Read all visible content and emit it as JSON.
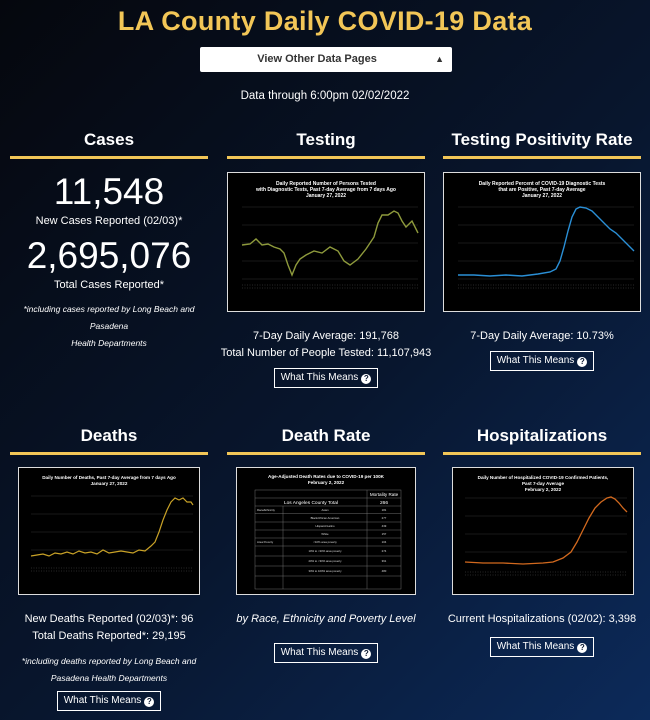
{
  "page_title": "LA County Daily COVID-19 Data",
  "select": {
    "value": "View Other Data Pages"
  },
  "data_through": "Data through 6:00pm 02/02/2022",
  "what_label": "What This Means",
  "cases": {
    "title": "Cases",
    "new_cases": "11,548",
    "new_cases_label": "New Cases Reported (02/03)*",
    "total_cases": "2,695,076",
    "total_cases_label": "Total Cases Reported*",
    "note_line1": "*including cases reported by Long Beach and Pasadena",
    "note_line2": "Health Departments"
  },
  "testing": {
    "title": "Testing",
    "chart_title1": "Daily Reported Number of Persons Tested",
    "chart_title2": "with Diagnostic Tests, Past 7-day Average from 7 days Ago",
    "chart_title3": "January 27, 2022",
    "avg": "7-Day Daily Average: 191,768",
    "total": "Total Number of People Tested: 11,107,943",
    "line_color": "#8e9a3c"
  },
  "positivity": {
    "title": "Testing Positivity Rate",
    "chart_title1": "Daily Reported Percent of COVID-19 Diagnostic Tests",
    "chart_title2": "that are Positive, Past 7-day Average",
    "chart_title3": "January 27, 2022",
    "avg": "7-Day Daily Average: 10.73%",
    "line_color": "#2a8fd6"
  },
  "deaths": {
    "title": "Deaths",
    "chart_title1": "Daily Number of Deaths, Past 7-day Average from 7 days Ago",
    "chart_title2": "January 27, 2022",
    "new": "New Deaths Reported (02/03)*: 96",
    "total": "Total Deaths Reported*: 29,195",
    "note_line1": "*including deaths reported by Long Beach and",
    "note_line2": "Pasadena Health Departments",
    "line_color": "#c9a227"
  },
  "death_rate": {
    "title": "Death Rate",
    "chart_title1": "Age-Adjusted Death Rates due to COVID-19 per 100K",
    "chart_title2": "February 2, 2022",
    "table_header": "Mortality Rate",
    "total_label": "Los Angeles County Total",
    "total_value": "266",
    "rows": [
      {
        "group": "Race/Ethnicity",
        "label": "Asian",
        "value": "181"
      },
      {
        "group": "",
        "label": "Black/African American",
        "value": "277"
      },
      {
        "group": "",
        "label": "Hispanic/Latino",
        "value": "439"
      },
      {
        "group": "",
        "label": "White",
        "value": "157"
      },
      {
        "group": "Area Poverty",
        "label": "<10% area poverty",
        "value": "104"
      },
      {
        "group": "",
        "label": "10% to <20% area poverty",
        "value": "274"
      },
      {
        "group": "",
        "label": "20% to <30% area poverty",
        "value": "361"
      },
      {
        "group": "",
        "label": "30% to 100% area poverty",
        "value": "480"
      }
    ],
    "caption": "by Race, Ethnicity and Poverty Level"
  },
  "hosp": {
    "title": "Hospitalizations",
    "chart_title1": "Daily Number of Hospitalized COVID-19 Confirmed Patients,",
    "chart_title2": "Past 7-day Average",
    "chart_title3": "February 2, 2022",
    "current": "Current Hospitalizations (02/02): 3,398",
    "line_color": "#d2691e"
  }
}
